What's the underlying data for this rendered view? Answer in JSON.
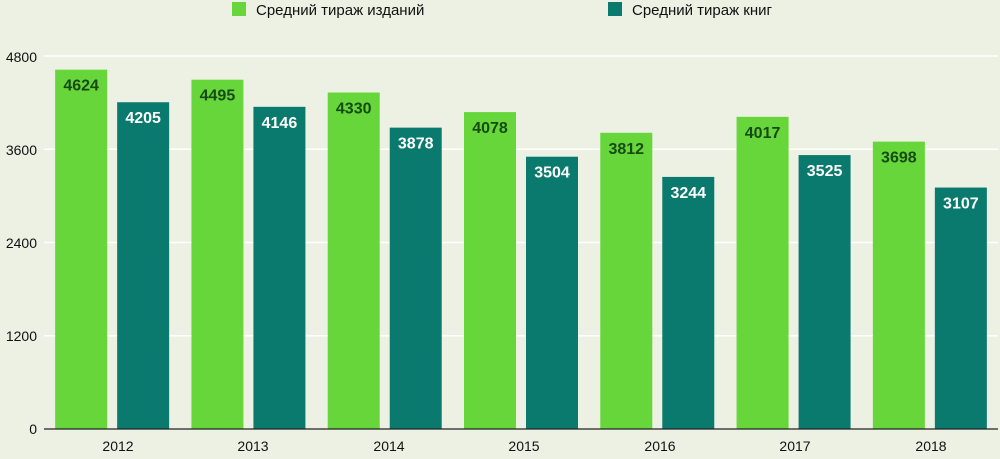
{
  "chart_data": {
    "type": "bar",
    "title": "",
    "xlabel": "",
    "ylabel": "",
    "categories": [
      "2012",
      "2013",
      "2014",
      "2015",
      "2016",
      "2017",
      "2018"
    ],
    "series": [
      {
        "name": "Средний тираж изданий",
        "color": "#66d63a",
        "label_color": "#174a12",
        "values": [
          4624,
          4495,
          4330,
          4078,
          3812,
          4017,
          3698
        ]
      },
      {
        "name": "Средний тираж книг",
        "color": "#0a7a6f",
        "label_color": "#ffffff",
        "values": [
          4205,
          4146,
          3878,
          3504,
          3244,
          3525,
          3107
        ]
      }
    ],
    "ylim": [
      0,
      4800
    ],
    "yticks": [
      "0",
      "1200",
      "2400",
      "3600",
      "4800"
    ],
    "grid": true,
    "legend_position": "top-center",
    "colors": {
      "background": "#edf1e4",
      "grid": "#ffffff",
      "axis": "#222222",
      "tick_text": "#111111"
    }
  }
}
